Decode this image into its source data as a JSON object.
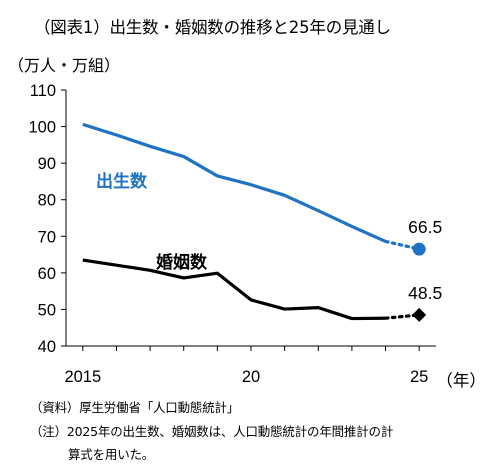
{
  "title": "（図表1）出生数・婚姻数の推移と25年の見通し",
  "unit_label": "（万人・万組）",
  "notes": {
    "source": "（資料）厚生労働省「人口動態統計」",
    "note1": "（注）2025年の出生数、婚姻数は、人口動態統計の年間推計の計",
    "note2": "算式を用いた。"
  },
  "colors": {
    "births": "#1f72c4",
    "marriages": "#000000"
  },
  "chart_data": {
    "type": "line",
    "title": "（図表1）出生数・婚姻数の推移と25年の見通し",
    "ylabel": "（万人・万組）",
    "xlabel": "（年）",
    "ylim": [
      40,
      110
    ],
    "yticks": [
      "110",
      "100",
      "90",
      "80",
      "70",
      "60",
      "50",
      "40"
    ],
    "xticks": [
      {
        "x": 2015,
        "label": "2015"
      },
      {
        "x": 2020,
        "label": "20"
      },
      {
        "x": 2025,
        "label": "25"
      }
    ],
    "x_unit_label": "（年）",
    "series": [
      {
        "name": "出生数",
        "x": [
          2015,
          2016,
          2017,
          2018,
          2019,
          2020,
          2021,
          2022,
          2023,
          2024
        ],
        "values": [
          100.6,
          97.7,
          94.6,
          91.8,
          86.5,
          84.1,
          81.2,
          77.0,
          72.7,
          68.6
        ],
        "forecast": {
          "x": 2025,
          "value": 66.5,
          "label": "66.5"
        }
      },
      {
        "name": "婚姻数",
        "x": [
          2015,
          2016,
          2017,
          2018,
          2019,
          2020,
          2021,
          2022,
          2023,
          2024
        ],
        "values": [
          63.5,
          62.1,
          60.7,
          58.6,
          59.9,
          52.6,
          50.1,
          50.5,
          47.5,
          47.6
        ],
        "forecast": {
          "x": 2025,
          "value": 48.5,
          "label": "48.5"
        }
      }
    ],
    "grid": false,
    "legend": "inline-labels"
  }
}
